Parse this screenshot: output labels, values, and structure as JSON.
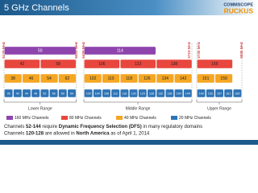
{
  "header": {
    "title": "5 GHz Channels",
    "logo_top": "COMMSCOPE",
    "logo_bottom": "RUCKUS"
  },
  "frequencies": [
    "5170 MHz",
    "5330 MHz",
    "5490 MHz",
    "5710 MHz",
    "5735 MHz",
    "5835 MHz"
  ],
  "rows": [
    {
      "name": "160 MHz Channels",
      "color": "#8e44ad",
      "channels": [
        "50",
        "114"
      ]
    },
    {
      "name": "80 MHz Channels",
      "color": "#e8473e",
      "channels": [
        "42",
        "58",
        "106",
        "122",
        "138",
        "155"
      ]
    },
    {
      "name": "40 MHz Channels",
      "color": "#f5a623",
      "channels": [
        "38",
        "46",
        "54",
        "62",
        "102",
        "110",
        "118",
        "126",
        "134",
        "142",
        "151",
        "159"
      ]
    },
    {
      "name": "20 MHz Channels",
      "color": "#2e74b5",
      "channels": [
        "36",
        "40",
        "44",
        "48",
        "52",
        "56",
        "60",
        "64",
        "100",
        "104",
        "108",
        "112",
        "116",
        "120",
        "124",
        "128",
        "132",
        "136",
        "140",
        "144",
        "149",
        "153",
        "157",
        "161",
        "165"
      ]
    }
  ],
  "ranges": [
    "Lower Range",
    "Middle Range",
    "Upper Range"
  ],
  "notes": [
    [
      "Channels ",
      "52-144",
      " require ",
      "Dynamic Frequency Selection (DFS)",
      " in many regulatory domains"
    ],
    [
      "Channels ",
      "120-128",
      " are allowed in ",
      "North America",
      " as of April 1, 2014"
    ]
  ]
}
